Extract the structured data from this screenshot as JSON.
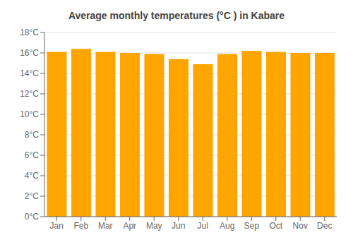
{
  "chart_data": {
    "type": "bar",
    "title": "Average monthly temperatures (°C ) in Kabare",
    "categories": [
      "Jan",
      "Feb",
      "Mar",
      "Apr",
      "May",
      "Jun",
      "Jul",
      "Aug",
      "Sep",
      "Oct",
      "Nov",
      "Dec"
    ],
    "values": [
      16.1,
      16.4,
      16.1,
      16.0,
      15.9,
      15.4,
      14.9,
      15.9,
      16.2,
      16.1,
      16.0,
      16.0
    ],
    "color": "#FFA500",
    "ylim": [
      0,
      18
    ],
    "yticks": [
      {
        "value": 0,
        "label": "0°C"
      },
      {
        "value": 2,
        "label": "2°C"
      },
      {
        "value": 4,
        "label": "4°C"
      },
      {
        "value": 6,
        "label": "6°C"
      },
      {
        "value": 8,
        "label": "8°C"
      },
      {
        "value": 10,
        "label": "10°C"
      },
      {
        "value": 12,
        "label": "12°C"
      },
      {
        "value": 14,
        "label": "14°C"
      },
      {
        "value": 16,
        "label": "16°C"
      },
      {
        "value": 18,
        "label": "18°C"
      }
    ],
    "grid": true
  }
}
